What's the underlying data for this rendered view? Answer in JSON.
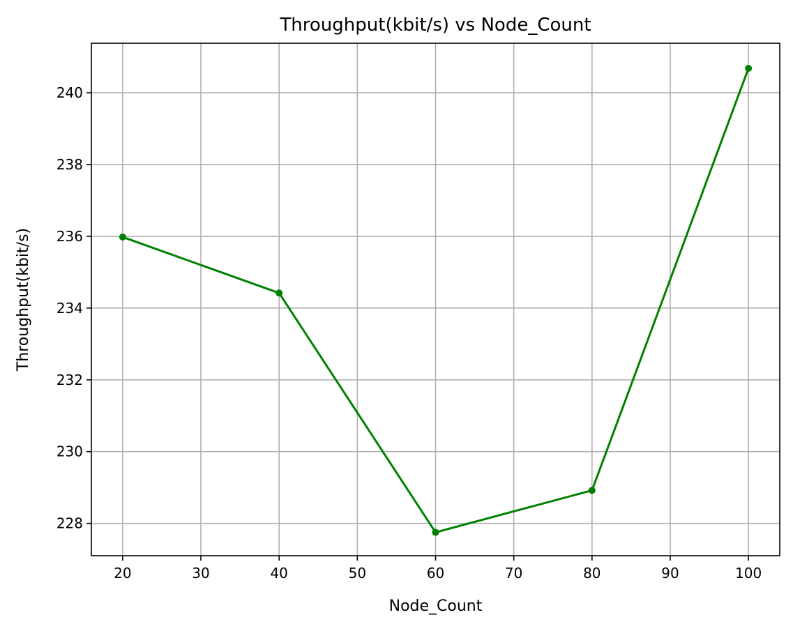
{
  "chart_data": {
    "type": "line",
    "title": "Throughput(kbit/s) vs Node_Count",
    "xlabel": "Node_Count",
    "ylabel": "Throughput(kbit/s)",
    "x": [
      20,
      40,
      60,
      80,
      100
    ],
    "series": [
      {
        "values": [
          235.98,
          234.42,
          227.75,
          228.92,
          240.68
        ],
        "color": "#008000",
        "marker": "circle"
      }
    ],
    "xlim": [
      16,
      104
    ],
    "ylim": [
      227.1,
      241.38
    ],
    "xticks": [
      20,
      30,
      40,
      50,
      60,
      70,
      80,
      90,
      100
    ],
    "yticks": [
      228,
      230,
      232,
      234,
      236,
      238,
      240
    ],
    "grid": true,
    "grid_color": "#b0b0b0",
    "axis_color": "#000000",
    "legend": "none"
  }
}
